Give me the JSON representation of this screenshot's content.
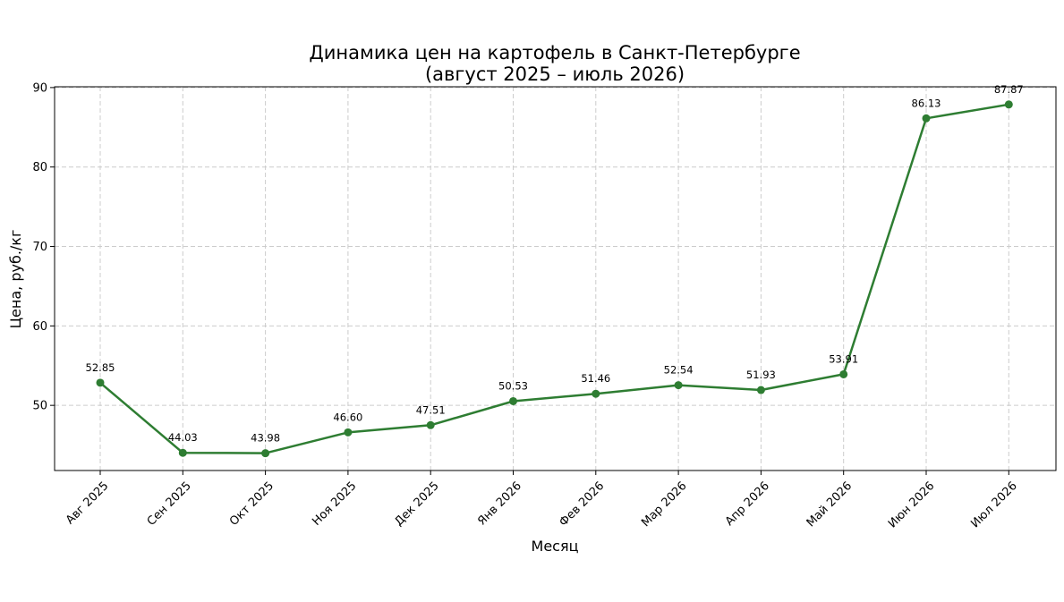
{
  "chart_data": {
    "type": "line",
    "title_line1": "Динамика цен на картофель в Санкт-Петербурге",
    "title_line2": "(август 2025 – июль 2026)",
    "xlabel": "Месяц",
    "ylabel": "Цена, руб./кг",
    "categories": [
      "Авг 2025",
      "Сен 2025",
      "Окт 2025",
      "Ноя 2025",
      "Дек 2025",
      "Янв 2026",
      "Фев 2026",
      "Мар 2026",
      "Апр 2026",
      "Май 2026",
      "Июн 2026",
      "Июл 2026"
    ],
    "values": [
      52.85,
      44.03,
      43.98,
      46.6,
      47.51,
      50.53,
      51.46,
      52.54,
      51.93,
      53.91,
      86.13,
      87.87
    ],
    "data_labels": [
      "52.85",
      "44.03",
      "43.98",
      "46.60",
      "47.51",
      "50.53",
      "51.46",
      "52.54",
      "51.93",
      "53.91",
      "86.13",
      "87.87"
    ],
    "yticks": [
      50,
      60,
      70,
      80,
      90
    ],
    "ylim": [
      41.8,
      90.1
    ],
    "grid": true,
    "line_color": "#2e7d32"
  }
}
